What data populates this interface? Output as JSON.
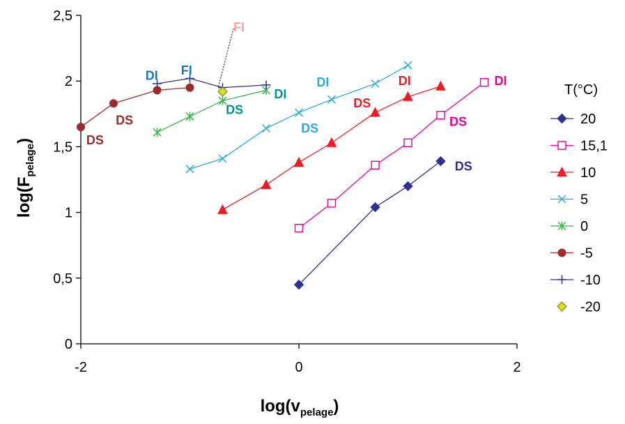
{
  "chart_data": {
    "type": "line",
    "xlabel_main": "log(v",
    "xlabel_sub": "pelage",
    "xlabel_end": ")",
    "ylabel_main": "log(F",
    "ylabel_sub": "pelage",
    "ylabel_end": ")",
    "xlim": [
      -2,
      2
    ],
    "ylim": [
      0,
      2.5
    ],
    "xticks": [
      -2,
      0,
      2
    ],
    "xtick_labels": [
      "-2",
      "0",
      "2"
    ],
    "yticks": [
      0,
      0.5,
      1,
      1.5,
      2,
      2.5
    ],
    "ytick_labels": [
      "0",
      "0,5",
      "1",
      "1,5",
      "2",
      "2,5"
    ],
    "grid": false,
    "legend_title": "T(°C)",
    "legend_position": "right",
    "series": [
      {
        "name": "20",
        "color": "#2E3192",
        "marker": "diamond",
        "line": true,
        "x": [
          0,
          0.7,
          1,
          1.3
        ],
        "y": [
          0.45,
          1.04,
          1.2,
          1.39
        ]
      },
      {
        "name": "15,1",
        "color": "#EC008C",
        "marker": "square-open",
        "line": true,
        "x": [
          0,
          0.3,
          0.7,
          1,
          1.3,
          1.7
        ],
        "y": [
          0.88,
          1.07,
          1.36,
          1.53,
          1.74,
          1.99
        ]
      },
      {
        "name": "10",
        "color": "#ED1C24",
        "marker": "triangle",
        "line": true,
        "x": [
          -0.7,
          -0.3,
          0,
          0.3,
          0.7,
          1,
          1.3
        ],
        "y": [
          1.02,
          1.21,
          1.38,
          1.53,
          1.76,
          1.88,
          1.96
        ]
      },
      {
        "name": "5",
        "color": "#29ABE2",
        "marker": "x",
        "line": true,
        "x": [
          -1,
          -0.7,
          -0.3,
          0,
          0.3,
          0.7,
          1
        ],
        "y": [
          1.33,
          1.41,
          1.64,
          1.76,
          1.86,
          1.98,
          2.12
        ]
      },
      {
        "name": "0",
        "color": "#39B54A",
        "marker": "asterisk",
        "line": true,
        "x": [
          -1.3,
          -1,
          -0.7,
          -0.3
        ],
        "y": [
          1.61,
          1.73,
          1.85,
          1.93
        ]
      },
      {
        "name": "-5",
        "color": "#9E2A2B",
        "marker": "circle",
        "line": true,
        "x": [
          -2,
          -1.7,
          -1.3,
          -1
        ],
        "y": [
          1.65,
          1.83,
          1.93,
          1.95
        ]
      },
      {
        "name": "-10",
        "color": "#2E3192",
        "marker": "plus",
        "line": true,
        "x": [
          -1.3,
          -1,
          -0.7,
          -0.3
        ],
        "y": [
          1.98,
          2.02,
          1.95,
          1.97
        ]
      },
      {
        "name": "-20",
        "color": "#D7DF23",
        "marker": "diamond-yellow",
        "line": false,
        "x": [
          -0.7
        ],
        "y": [
          1.92
        ]
      }
    ],
    "annotations": [
      {
        "text": "DS",
        "x": -1.87,
        "y": 1.55,
        "color": "#9E2A2B"
      },
      {
        "text": "DS",
        "x": -1.6,
        "y": 1.7,
        "color": "#9E2A2B"
      },
      {
        "text": "DI",
        "x": -1.35,
        "y": 2.04,
        "color": "#1B75BC"
      },
      {
        "text": "FI",
        "x": -1.03,
        "y": 2.08,
        "color": "#1B75BC"
      },
      {
        "text": "FI",
        "x": -0.55,
        "y": 2.41,
        "color": "#F4A6A6"
      },
      {
        "text": "DS",
        "x": -0.59,
        "y": 1.78,
        "color": "#009688"
      },
      {
        "text": "DI",
        "x": -0.17,
        "y": 1.9,
        "color": "#009688"
      },
      {
        "text": "DI",
        "x": 0.22,
        "y": 1.99,
        "color": "#29ABE2"
      },
      {
        "text": "DS",
        "x": 0.1,
        "y": 1.64,
        "color": "#29ABE2"
      },
      {
        "text": "DS",
        "x": 0.58,
        "y": 1.83,
        "color": "#ED1C24"
      },
      {
        "text": "DI",
        "x": 0.97,
        "y": 2.0,
        "color": "#ED1C24"
      },
      {
        "text": "DS",
        "x": 1.46,
        "y": 1.69,
        "color": "#EC008C"
      },
      {
        "text": "DI",
        "x": 1.85,
        "y": 2.0,
        "color": "#EC008C"
      },
      {
        "text": "DS",
        "x": 1.51,
        "y": 1.35,
        "color": "#2E3192"
      }
    ],
    "pointer_line": {
      "x1": -0.6,
      "y1": 2.4,
      "x2": -0.74,
      "y2": 1.95
    }
  }
}
